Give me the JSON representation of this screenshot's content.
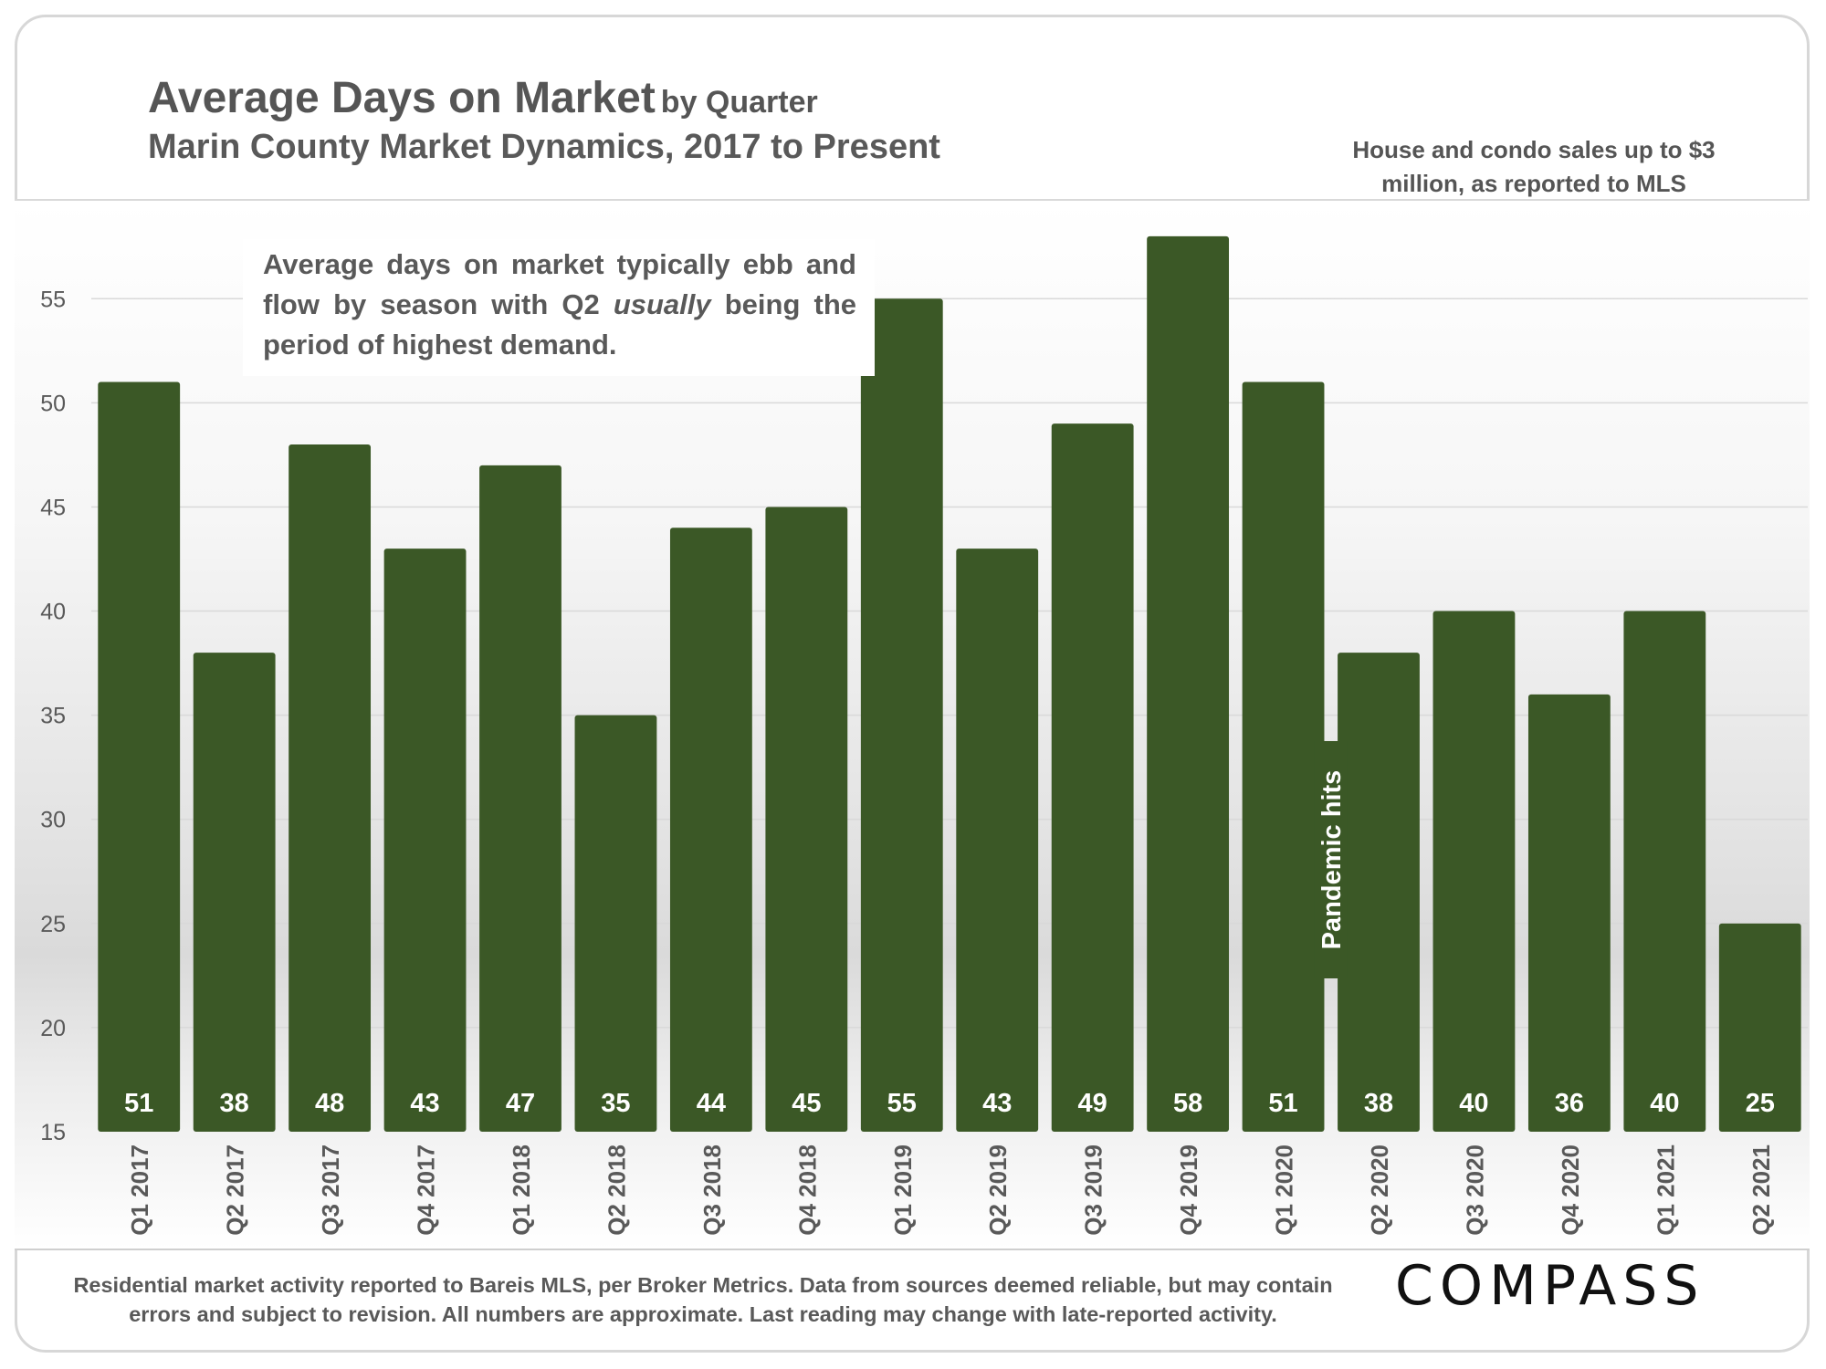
{
  "header": {
    "title": "Average Days on Market",
    "title_suffix": "by Quarter",
    "subtitle": "Marin County Market Dynamics, 2017 to Present",
    "note": "House and condo sales up to $3 million, as reported to MLS"
  },
  "callout": {
    "text_before": "Average days on market typically ebb and flow by season with Q2 ",
    "emphasis": "usually",
    "text_after": " being the period of highest demand."
  },
  "footer": {
    "disclaimer": "Residential market activity reported to Bareis MLS, per Broker Metrics. Data from sources deemed reliable, but may contain errors and subject to revision. All numbers are approximate. Last reading may change with late-reported activity."
  },
  "logo": {
    "text": "COMPASS"
  },
  "colors": {
    "bar": "#3b5826",
    "bar_label": "#ffffff",
    "text": "#595959",
    "gridline": "#d9d9d9"
  },
  "chart_data": {
    "type": "bar",
    "categories": [
      "Q1 2017",
      "Q2 2017",
      "Q3 2017",
      "Q4 2017",
      "Q1 2018",
      "Q2 2018",
      "Q3 2018",
      "Q4 2018",
      "Q1 2019",
      "Q2 2019",
      "Q3 2019",
      "Q4 2019",
      "Q1 2020",
      "Q2 2020",
      "Q3 2020",
      "Q4 2020",
      "Q1 2021",
      "Q2 2021"
    ],
    "values": [
      51,
      38,
      48,
      43,
      47,
      35,
      44,
      45,
      55,
      43,
      49,
      58,
      51,
      38,
      40,
      36,
      40,
      25
    ],
    "ylim": [
      15,
      59
    ],
    "yticks": [
      15,
      20,
      25,
      30,
      35,
      40,
      45,
      50,
      55
    ],
    "grid": true,
    "data_labels": true,
    "annotations": [
      {
        "text": "Pandemic hits",
        "between": [
          "Q1 2020",
          "Q2 2020"
        ]
      }
    ]
  }
}
